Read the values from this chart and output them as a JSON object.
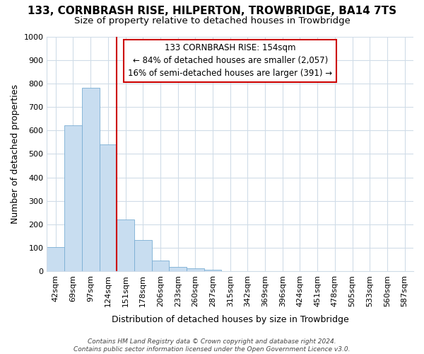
{
  "title": "133, CORNBRASH RISE, HILPERTON, TROWBRIDGE, BA14 7TS",
  "subtitle": "Size of property relative to detached houses in Trowbridge",
  "xlabel": "Distribution of detached houses by size in Trowbridge",
  "ylabel": "Number of detached properties",
  "categories": [
    "42sqm",
    "69sqm",
    "97sqm",
    "124sqm",
    "151sqm",
    "178sqm",
    "206sqm",
    "233sqm",
    "260sqm",
    "287sqm",
    "315sqm",
    "342sqm",
    "369sqm",
    "396sqm",
    "424sqm",
    "451sqm",
    "478sqm",
    "505sqm",
    "533sqm",
    "560sqm",
    "587sqm"
  ],
  "values": [
    103,
    623,
    783,
    540,
    220,
    133,
    45,
    18,
    12,
    8,
    0,
    0,
    0,
    0,
    0,
    0,
    0,
    0,
    0,
    0,
    0
  ],
  "bar_color": "#c8ddf0",
  "bar_edge_color": "#7aaed4",
  "highlight_index": 4,
  "highlight_line_color": "#cc0000",
  "ylim": [
    0,
    1000
  ],
  "yticks": [
    0,
    100,
    200,
    300,
    400,
    500,
    600,
    700,
    800,
    900,
    1000
  ],
  "annotation_text": "133 CORNBRASH RISE: 154sqm\n← 84% of detached houses are smaller (2,057)\n16% of semi-detached houses are larger (391) →",
  "annotation_box_color": "#ffffff",
  "annotation_box_edge": "#cc0000",
  "fig_bg_color": "#ffffff",
  "plot_bg_color": "#ffffff",
  "grid_color": "#d0dce8",
  "footer": "Contains HM Land Registry data © Crown copyright and database right 2024.\nContains public sector information licensed under the Open Government Licence v3.0.",
  "title_fontsize": 11,
  "subtitle_fontsize": 9.5
}
